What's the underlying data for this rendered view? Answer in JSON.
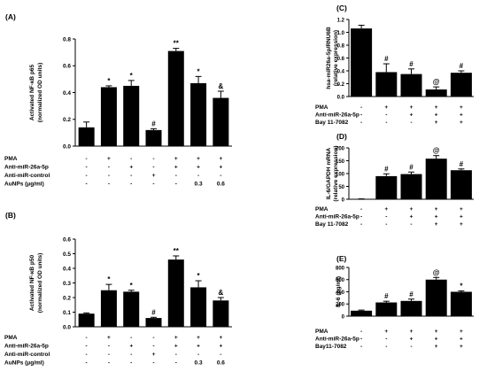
{
  "chart_data": [
    {
      "type": "bar",
      "panel": "(A)",
      "ylabel": [
        "Activated NF-κB p65",
        "(normalized OD units)"
      ],
      "ylim": [
        0,
        0.8
      ],
      "yticks": [
        "0.0",
        "0.2",
        "0.4",
        "0.6",
        "0.8"
      ],
      "values": [
        0.14,
        0.44,
        0.45,
        0.12,
        0.71,
        0.47,
        0.36
      ],
      "errors": [
        0.04,
        0.01,
        0.04,
        0.01,
        0.02,
        0.05,
        0.05
      ],
      "sig": [
        "",
        "*",
        "*",
        "#",
        "**",
        "*",
        "&"
      ],
      "rows": [
        {
          "label": "PMA",
          "cells": [
            "-",
            "+",
            "-",
            "-",
            "+",
            "+",
            "+"
          ]
        },
        {
          "label": "Anti-miR-26a-5p",
          "cells": [
            "-",
            "-",
            "+",
            "-",
            "+",
            "+",
            "+"
          ]
        },
        {
          "label": "Anti-miR-control",
          "cells": [
            "-",
            "-",
            "-",
            "+",
            "-",
            "-",
            "-"
          ]
        },
        {
          "label": "AuNPs (μg/ml)",
          "cells": [
            "-",
            "-",
            "-",
            "-",
            "-",
            "0.3",
            "0.6"
          ]
        }
      ]
    },
    {
      "type": "bar",
      "panel": "(B)",
      "ylabel": [
        "Activated NF-κB p50",
        "(normalized OD units)"
      ],
      "ylim": [
        0,
        0.6
      ],
      "yticks": [
        "0.0",
        "0.1",
        "0.2",
        "0.3",
        "0.4",
        "0.5",
        "0.6"
      ],
      "values": [
        0.09,
        0.25,
        0.24,
        0.06,
        0.46,
        0.27,
        0.18
      ],
      "errors": [
        0.005,
        0.04,
        0.01,
        0.005,
        0.025,
        0.045,
        0.02
      ],
      "sig": [
        "",
        "*",
        "*",
        "#",
        "**",
        "*",
        "&"
      ],
      "rows": [
        {
          "label": "PMA",
          "cells": [
            "-",
            "+",
            "-",
            "-",
            "+",
            "+",
            "+"
          ]
        },
        {
          "label": "Anti-miR-26a-5p",
          "cells": [
            "-",
            "-",
            "+",
            "-",
            "+",
            "+",
            "+"
          ]
        },
        {
          "label": "Anti-miR-control",
          "cells": [
            "-",
            "-",
            "-",
            "+",
            "-",
            "-",
            "-"
          ]
        },
        {
          "label": "AuNPs (μg/ml)",
          "cells": [
            "-",
            "-",
            "-",
            "-",
            "-",
            "0.3",
            "0.6"
          ]
        }
      ]
    },
    {
      "type": "bar",
      "panel": "(C)",
      "ylabel": [
        "hsa-miR26a-5p/RNU6B",
        "(relative expression)"
      ],
      "ylim": [
        0,
        1.2
      ],
      "yticks": [
        "0.0",
        "0.2",
        "0.4",
        "0.6",
        "0.8",
        "1.0",
        "1.2"
      ],
      "values": [
        1.06,
        0.38,
        0.35,
        0.11,
        0.37
      ],
      "errors": [
        0.05,
        0.13,
        0.08,
        0.04,
        0.03
      ],
      "sig": [
        "",
        "#",
        "#",
        "@",
        "#"
      ],
      "rows": [
        {
          "label": "PMA",
          "cells": [
            "-",
            "+",
            "+",
            "+",
            "+"
          ]
        },
        {
          "label": "Anti-miR-26a-5p",
          "cells": [
            "-",
            "-",
            "+",
            "+",
            "+"
          ]
        },
        {
          "label": "Bay 11-7082",
          "cells": [
            "-",
            "-",
            "-",
            "+",
            "+"
          ]
        }
      ]
    },
    {
      "type": "bar",
      "panel": "(D)",
      "ylabel": [
        "IL-6/GAPDH mRNA",
        "(relative expression)"
      ],
      "ylim": [
        0,
        200
      ],
      "yticks": [
        "0",
        "50",
        "100",
        "150",
        "200"
      ],
      "values": [
        1,
        90,
        98,
        158,
        113
      ],
      "errors": [
        0.5,
        9,
        8,
        12,
        5
      ],
      "sig": [
        "",
        "#",
        "#",
        "@",
        "#"
      ],
      "rows": [
        {
          "label": "PMA",
          "cells": [
            "-",
            "+",
            "+",
            "+",
            "+"
          ]
        },
        {
          "label": "Anti-miR-26a-5p",
          "cells": [
            "-",
            "-",
            "+",
            "+",
            "+"
          ]
        },
        {
          "label": "Bay 11-7082",
          "cells": [
            "-",
            "-",
            "-",
            "+",
            "+"
          ]
        }
      ]
    },
    {
      "type": "bar",
      "panel": "(E)",
      "ylabel": [
        "IL-6 (pg/ml)"
      ],
      "ylim": [
        0,
        800
      ],
      "yticks": [
        "0",
        "200",
        "400",
        "600",
        "800"
      ],
      "values": [
        90,
        225,
        250,
        600,
        400
      ],
      "errors": [
        10,
        20,
        30,
        35,
        15
      ],
      "sig": [
        "",
        "#",
        "#",
        "@",
        "*"
      ],
      "rows": [
        {
          "label": "PMA",
          "cells": [
            "-",
            "+",
            "+",
            "+",
            "+"
          ]
        },
        {
          "label": "Anti-miR-26a-5p",
          "cells": [
            "-",
            "-",
            "+",
            "+",
            "+"
          ]
        },
        {
          "label": "Bay11-7082",
          "cells": [
            "-",
            "-",
            "-",
            "+",
            "+"
          ]
        }
      ]
    }
  ]
}
